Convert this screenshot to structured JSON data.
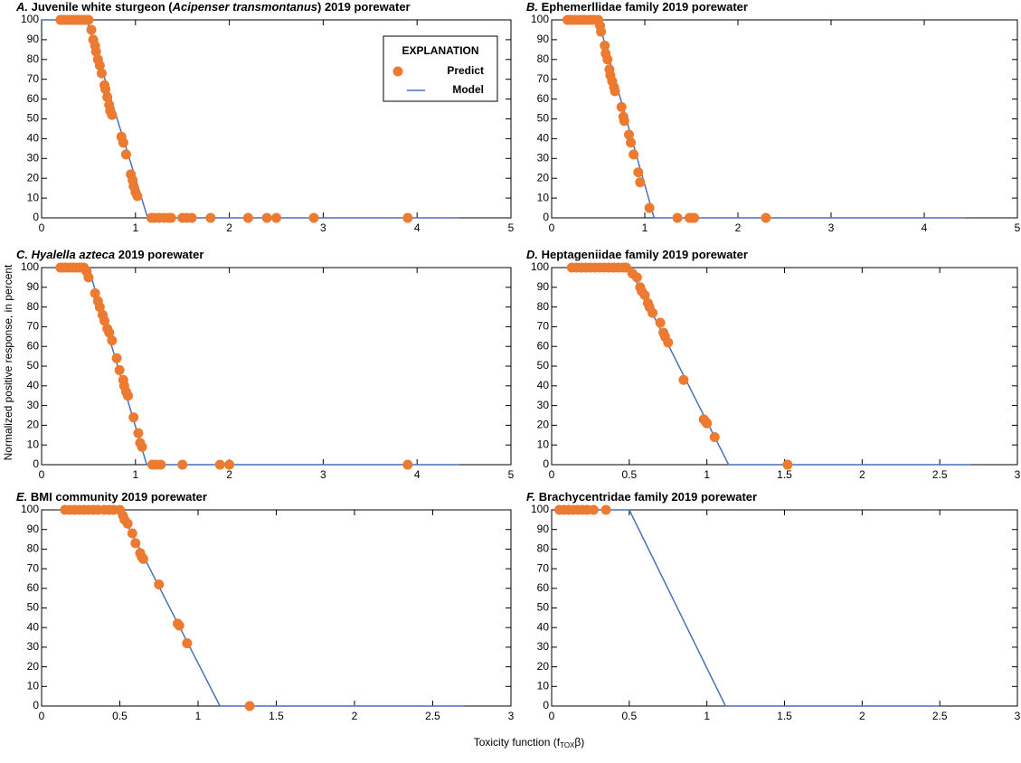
{
  "ylabel": "Normalized positive response, in percent",
  "xlabel": {
    "text": "Toxicity function (f",
    "sub": "TOX",
    "end": "β)"
  },
  "chart_data": [
    {
      "type": "scatter",
      "title_parts": [
        {
          "text": "A.",
          "italic": true
        },
        {
          "text": " Juvenile white sturgeon ("
        },
        {
          "text": "Acipenser transmontanus",
          "italic": true
        },
        {
          "text": ") 2019 porewater"
        }
      ],
      "xlim": [
        0,
        5
      ],
      "xticks": [
        0,
        1,
        2,
        3,
        4,
        5
      ],
      "ylim": [
        0,
        100
      ],
      "yticks": [
        0,
        10,
        20,
        30,
        40,
        50,
        60,
        70,
        80,
        90,
        100
      ],
      "legend": {
        "title": "EXPLANATION",
        "position": "upper right"
      },
      "series": [
        {
          "name": "Predict",
          "type": "scatter",
          "color": "#ec7a30",
          "x": [
            0.2,
            0.22,
            0.25,
            0.28,
            0.3,
            0.33,
            0.35,
            0.38,
            0.4,
            0.42,
            0.45,
            0.48,
            0.5,
            0.53,
            0.55,
            0.57,
            0.58,
            0.6,
            0.62,
            0.64,
            0.67,
            0.68,
            0.7,
            0.72,
            0.73,
            0.75,
            0.85,
            0.87,
            0.9,
            0.95,
            0.97,
            0.98,
            1.0,
            1.02,
            1.17,
            1.2,
            1.25,
            1.3,
            1.35,
            1.38,
            1.5,
            1.55,
            1.6,
            1.8,
            2.2,
            2.4,
            2.5,
            2.9,
            3.9
          ],
          "values": [
            100,
            100,
            100,
            100,
            100,
            100,
            100,
            100,
            100,
            100,
            100,
            100,
            100,
            95,
            90,
            87,
            84,
            80,
            77,
            73,
            67,
            65,
            61,
            57,
            54,
            52,
            41,
            38,
            32,
            22,
            19,
            16,
            13,
            11,
            0,
            0,
            0,
            0,
            0,
            0,
            0,
            0,
            0,
            0,
            0,
            0,
            0,
            0,
            0
          ]
        },
        {
          "name": "Model",
          "type": "line",
          "color": "#4a70b8",
          "x": [
            0,
            0.48,
            1.13,
            4.45
          ],
          "values": [
            100,
            100,
            0,
            0
          ]
        }
      ]
    },
    {
      "type": "scatter",
      "title_parts": [
        {
          "text": "B.",
          "italic": true
        },
        {
          "text": " Ephemerllidae family 2019 porewater"
        }
      ],
      "xlim": [
        0,
        5
      ],
      "xticks": [
        0,
        1,
        2,
        3,
        4,
        5
      ],
      "ylim": [
        0,
        100
      ],
      "yticks": [
        0,
        10,
        20,
        30,
        40,
        50,
        60,
        70,
        80,
        90,
        100
      ],
      "series": [
        {
          "type": "scatter",
          "color": "#ec7a30",
          "x": [
            0.17,
            0.2,
            0.23,
            0.26,
            0.3,
            0.33,
            0.36,
            0.4,
            0.43,
            0.46,
            0.5,
            0.52,
            0.53,
            0.57,
            0.58,
            0.6,
            0.62,
            0.63,
            0.65,
            0.67,
            0.68,
            0.75,
            0.77,
            0.78,
            0.83,
            0.85,
            0.88,
            0.93,
            0.95,
            1.05,
            1.35,
            1.48,
            1.5,
            1.53,
            2.3
          ],
          "values": [
            100,
            100,
            100,
            100,
            100,
            100,
            100,
            100,
            100,
            100,
            100,
            97,
            94,
            87,
            83,
            80,
            75,
            72,
            69,
            66,
            64,
            56,
            51,
            49,
            42,
            38,
            32,
            23,
            18,
            5,
            0,
            0,
            0,
            0,
            0
          ]
        },
        {
          "type": "line",
          "color": "#4a70b8",
          "x": [
            0.15,
            0.5,
            1.1,
            4.45
          ],
          "values": [
            100,
            100,
            0,
            0
          ]
        }
      ]
    },
    {
      "type": "scatter",
      "title_parts": [
        {
          "text": "C. Hyalella azteca",
          "italic": true
        },
        {
          "text": " 2019 porewater"
        }
      ],
      "xlim": [
        0,
        5
      ],
      "xticks": [
        0,
        1,
        2,
        3,
        4,
        5
      ],
      "ylim": [
        0,
        100
      ],
      "yticks": [
        0,
        10,
        20,
        30,
        40,
        50,
        60,
        70,
        80,
        90,
        100
      ],
      "series": [
        {
          "type": "scatter",
          "color": "#ec7a30",
          "x": [
            0.2,
            0.23,
            0.26,
            0.3,
            0.33,
            0.36,
            0.4,
            0.43,
            0.45,
            0.48,
            0.5,
            0.57,
            0.6,
            0.62,
            0.65,
            0.67,
            0.7,
            0.72,
            0.75,
            0.8,
            0.83,
            0.87,
            0.88,
            0.9,
            0.92,
            0.98,
            1.03,
            1.05,
            1.07,
            1.18,
            1.22,
            1.27,
            1.5,
            1.9,
            2.0,
            3.9
          ],
          "values": [
            100,
            100,
            100,
            100,
            100,
            100,
            100,
            100,
            100,
            98,
            95,
            87,
            83,
            80,
            76,
            73,
            69,
            67,
            63,
            54,
            48,
            43,
            40,
            37,
            35,
            24,
            16,
            11,
            9,
            0,
            0,
            0,
            0,
            0,
            0,
            0
          ]
        },
        {
          "type": "line",
          "color": "#4a70b8",
          "x": [
            0.2,
            0.5,
            1.12,
            4.45
          ],
          "values": [
            100,
            100,
            0,
            0
          ]
        }
      ]
    },
    {
      "type": "scatter",
      "title_parts": [
        {
          "text": "D.",
          "italic": true
        },
        {
          "text": " Heptageniidae family 2019 porewater"
        }
      ],
      "xlim": [
        0,
        3
      ],
      "xticks": [
        0,
        0.5,
        1,
        1.5,
        2,
        2.5,
        3
      ],
      "ylim": [
        0,
        100
      ],
      "yticks": [
        0,
        10,
        20,
        30,
        40,
        50,
        60,
        70,
        80,
        90,
        100
      ],
      "series": [
        {
          "type": "scatter",
          "color": "#ec7a30",
          "x": [
            0.13,
            0.16,
            0.19,
            0.22,
            0.25,
            0.28,
            0.31,
            0.34,
            0.37,
            0.4,
            0.43,
            0.46,
            0.48,
            0.52,
            0.55,
            0.57,
            0.58,
            0.6,
            0.62,
            0.63,
            0.65,
            0.7,
            0.72,
            0.73,
            0.75,
            0.85,
            0.98,
            0.99,
            1.0,
            1.05,
            1.52
          ],
          "values": [
            100,
            100,
            100,
            100,
            100,
            100,
            100,
            100,
            100,
            100,
            100,
            100,
            100,
            97,
            95,
            90,
            88,
            86,
            82,
            80,
            77,
            72,
            67,
            65,
            62,
            43,
            23,
            22,
            21,
            14,
            0
          ]
        },
        {
          "type": "line",
          "color": "#4a70b8",
          "x": [
            0.15,
            0.5,
            1.14,
            2.7
          ],
          "values": [
            100,
            100,
            0,
            0
          ]
        }
      ]
    },
    {
      "type": "scatter",
      "title_parts": [
        {
          "text": "E.",
          "italic": true
        },
        {
          "text": " BMI community 2019 porewater"
        }
      ],
      "xlim": [
        0,
        3
      ],
      "xticks": [
        0,
        0.5,
        1,
        1.5,
        2,
        2.5,
        3
      ],
      "ylim": [
        0,
        100
      ],
      "yticks": [
        0,
        10,
        20,
        30,
        40,
        50,
        60,
        70,
        80,
        90,
        100
      ],
      "series": [
        {
          "type": "scatter",
          "color": "#ec7a30",
          "x": [
            0.15,
            0.18,
            0.21,
            0.24,
            0.27,
            0.3,
            0.33,
            0.36,
            0.4,
            0.43,
            0.46,
            0.5,
            0.52,
            0.53,
            0.55,
            0.58,
            0.6,
            0.63,
            0.64,
            0.65,
            0.75,
            0.87,
            0.88,
            0.93,
            1.33
          ],
          "values": [
            100,
            100,
            100,
            100,
            100,
            100,
            100,
            100,
            100,
            100,
            100,
            100,
            97,
            95,
            93,
            88,
            83,
            78,
            76,
            75,
            62,
            42,
            41,
            32,
            0
          ]
        },
        {
          "type": "line",
          "color": "#4a70b8",
          "x": [
            0.15,
            0.5,
            1.14,
            2.7
          ],
          "values": [
            100,
            100,
            0,
            0
          ]
        }
      ]
    },
    {
      "type": "scatter",
      "title_parts": [
        {
          "text": "F.",
          "italic": true
        },
        {
          "text": " Brachycentridae family 2019 porewater"
        }
      ],
      "xlim": [
        0,
        3
      ],
      "xticks": [
        0,
        0.5,
        1,
        1.5,
        2,
        2.5,
        3
      ],
      "ylim": [
        0,
        100
      ],
      "yticks": [
        0,
        10,
        20,
        30,
        40,
        50,
        60,
        70,
        80,
        90,
        100
      ],
      "series": [
        {
          "type": "scatter",
          "color": "#ec7a30",
          "x": [
            0.05,
            0.08,
            0.11,
            0.14,
            0.17,
            0.2,
            0.23,
            0.27,
            0.35
          ],
          "values": [
            100,
            100,
            100,
            100,
            100,
            100,
            100,
            100,
            100
          ]
        },
        {
          "type": "line",
          "color": "#4a70b8",
          "x": [
            0.07,
            0.5,
            1.12,
            2.5
          ],
          "values": [
            100,
            100,
            0,
            0
          ]
        }
      ]
    }
  ]
}
